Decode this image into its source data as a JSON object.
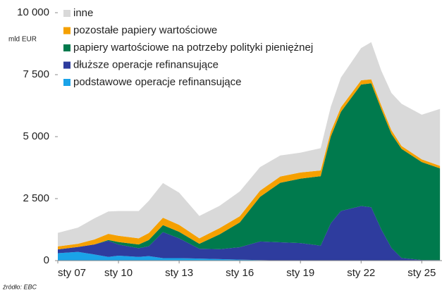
{
  "chart_data": {
    "type": "stacked_area",
    "y_label": "mld EUR",
    "source": "źródło: EBC",
    "x": [
      2007,
      2008,
      2008.8,
      2009.5,
      2010,
      2011,
      2011.5,
      2012.2,
      2013,
      2014,
      2015,
      2016,
      2017,
      2018,
      2019,
      2020,
      2020.5,
      2021,
      2022,
      2022.5,
      2023,
      2023.5,
      2024,
      2025,
      2025.9
    ],
    "series": [
      {
        "name": "podstawowe operacje refinansujące",
        "color": "#1aa3e8",
        "values": [
          300,
          350,
          250,
          150,
          200,
          150,
          180,
          100,
          100,
          80,
          60,
          40,
          20,
          10,
          5,
          5,
          3,
          2,
          1,
          1,
          5,
          10,
          5,
          5,
          10
        ]
      },
      {
        "name": "dłuższe operacje refinansujące",
        "color": "#2e3c9e",
        "values": [
          150,
          200,
          400,
          650,
          450,
          350,
          400,
          1050,
          800,
          400,
          400,
          500,
          750,
          730,
          700,
          600,
          1500,
          2000,
          2200,
          2150,
          1250,
          500,
          100,
          20,
          10
        ]
      },
      {
        "name": "papiery wartościowe na potrzeby polityki pieniężnej",
        "color": "#007a4d",
        "values": [
          0,
          0,
          0,
          30,
          100,
          150,
          250,
          280,
          260,
          200,
          600,
          1000,
          1800,
          2400,
          2600,
          2800,
          3500,
          4000,
          4900,
          5000,
          4850,
          4600,
          4400,
          3950,
          3700
        ]
      },
      {
        "name": "pozostałe papiery wartościowe",
        "color": "#f5a000",
        "values": [
          120,
          130,
          200,
          250,
          250,
          250,
          280,
          300,
          280,
          220,
          250,
          250,
          250,
          250,
          250,
          230,
          200,
          180,
          170,
          160,
          150,
          150,
          120,
          110,
          100
        ]
      },
      {
        "name": "inne",
        "color": "#d9d9d9",
        "values": [
          550,
          650,
          850,
          900,
          1000,
          1100,
          1300,
          1400,
          1300,
          900,
          900,
          1000,
          950,
          850,
          800,
          900,
          1000,
          1200,
          1300,
          1500,
          1400,
          1500,
          1700,
          1800,
          2300
        ]
      }
    ],
    "xlim": [
      2007,
      2026
    ],
    "xticks": [
      {
        "value": 2007,
        "label": "sty 07"
      },
      {
        "value": 2010,
        "label": "sty 10"
      },
      {
        "value": 2013,
        "label": "sty 13"
      },
      {
        "value": 2016,
        "label": "sty 16"
      },
      {
        "value": 2019,
        "label": "sty 19"
      },
      {
        "value": 2022,
        "label": "sty 22"
      },
      {
        "value": 2025,
        "label": "sty 25"
      }
    ],
    "ylim": [
      0,
      10000
    ],
    "yticks": [
      0,
      {
        "value": 2500,
        "label": "2 500"
      },
      {
        "value": 5000,
        "label": "5 000"
      },
      {
        "value": 7500,
        "label": "7 500"
      },
      {
        "value": 10000,
        "label": "10 000"
      }
    ],
    "legend": "upper-left"
  }
}
